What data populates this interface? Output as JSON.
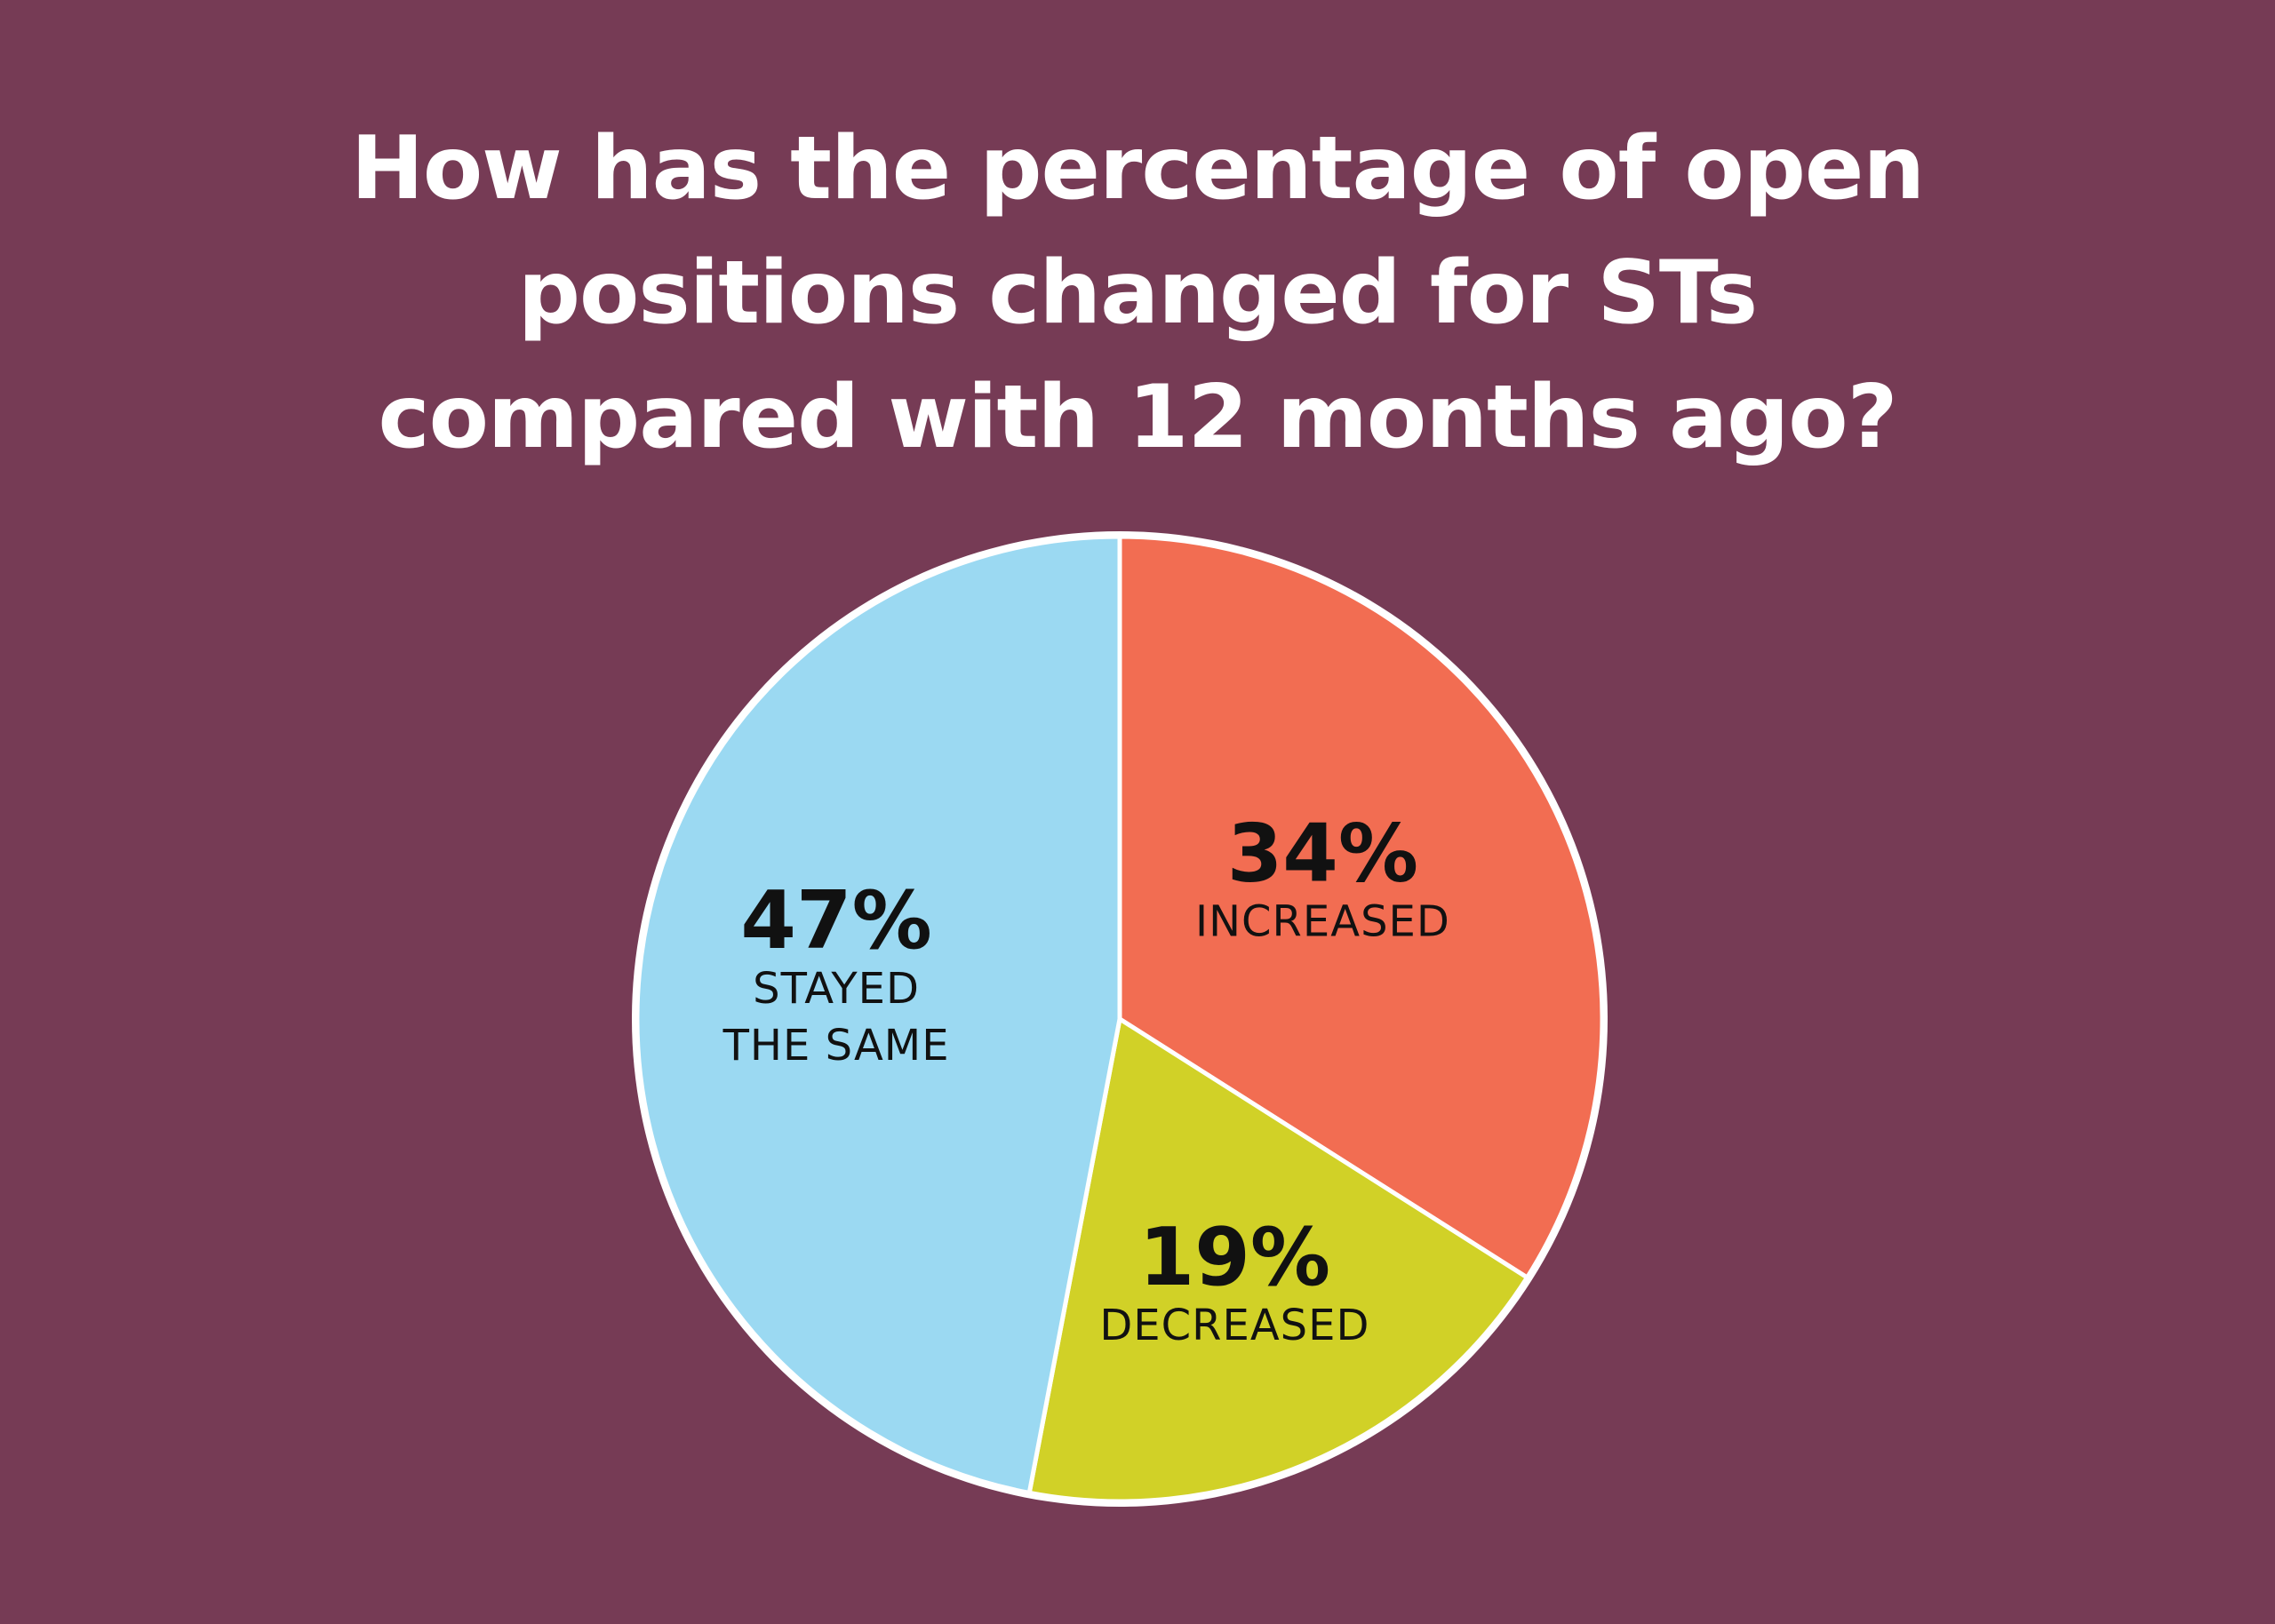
{
  "chart_data": {
    "type": "pie",
    "title_lines": [
      "How has the percentage of open",
      "positions changed for STs",
      "compared with 12 months ago?"
    ],
    "slices": [
      {
        "value": 34,
        "value_label": "34%",
        "label_lines": [
          "INCREASED"
        ],
        "color": "#f26d52"
      },
      {
        "value": 19,
        "value_label": "19%",
        "label_lines": [
          "DECREASED"
        ],
        "color": "#d1d127"
      },
      {
        "value": 47,
        "value_label": "47%",
        "label_lines": [
          "STAYED",
          "THE SAME"
        ],
        "color": "#9bd9f2"
      }
    ],
    "legend": "none",
    "background_color": "#763b55",
    "outline_color": "#ffffff"
  }
}
